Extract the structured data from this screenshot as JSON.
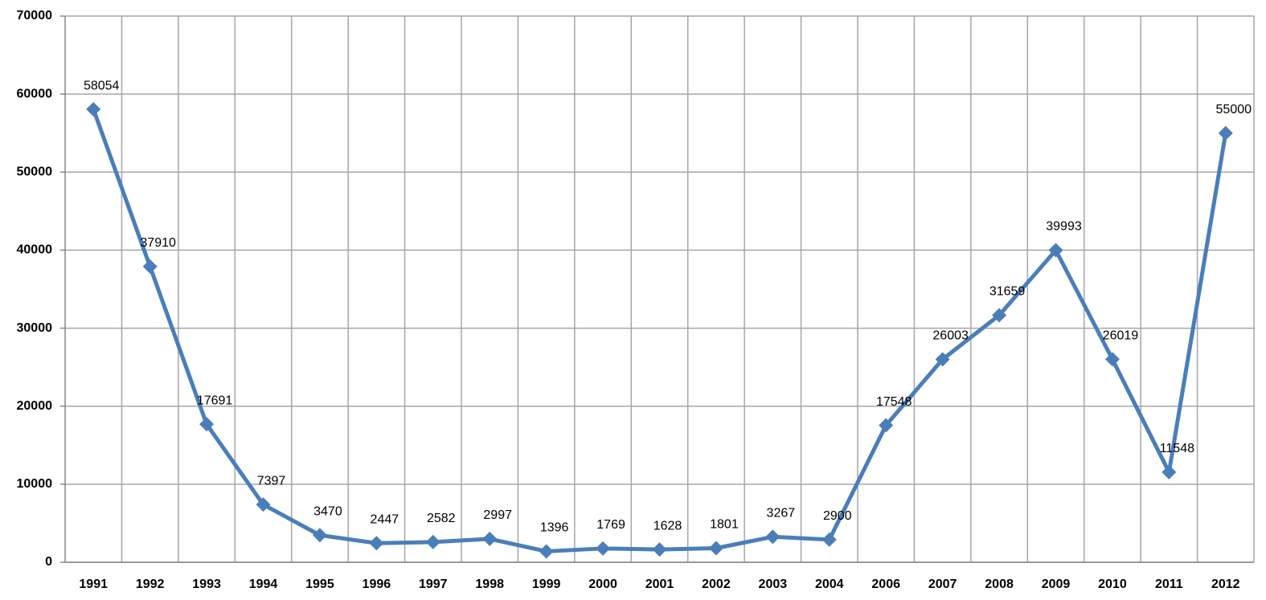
{
  "chart_data": {
    "type": "line",
    "categories": [
      "1991",
      "1992",
      "1993",
      "1994",
      "1995",
      "1996",
      "1997",
      "1998",
      "1999",
      "2000",
      "2001",
      "2002",
      "2003",
      "2004",
      "2006",
      "2007",
      "2008",
      "2009",
      "2010",
      "2011",
      "2012"
    ],
    "values": [
      58054,
      37910,
      17691,
      7397,
      3470,
      2447,
      2582,
      2997,
      1396,
      1769,
      1628,
      1801,
      3267,
      2900,
      17548,
      26003,
      31659,
      39993,
      26019,
      11548,
      55000
    ],
    "color": "#4a7ebb",
    "ylim": [
      0,
      70000
    ],
    "yticks": [
      0,
      10000,
      20000,
      30000,
      40000,
      50000,
      60000,
      70000
    ],
    "grid": true
  }
}
